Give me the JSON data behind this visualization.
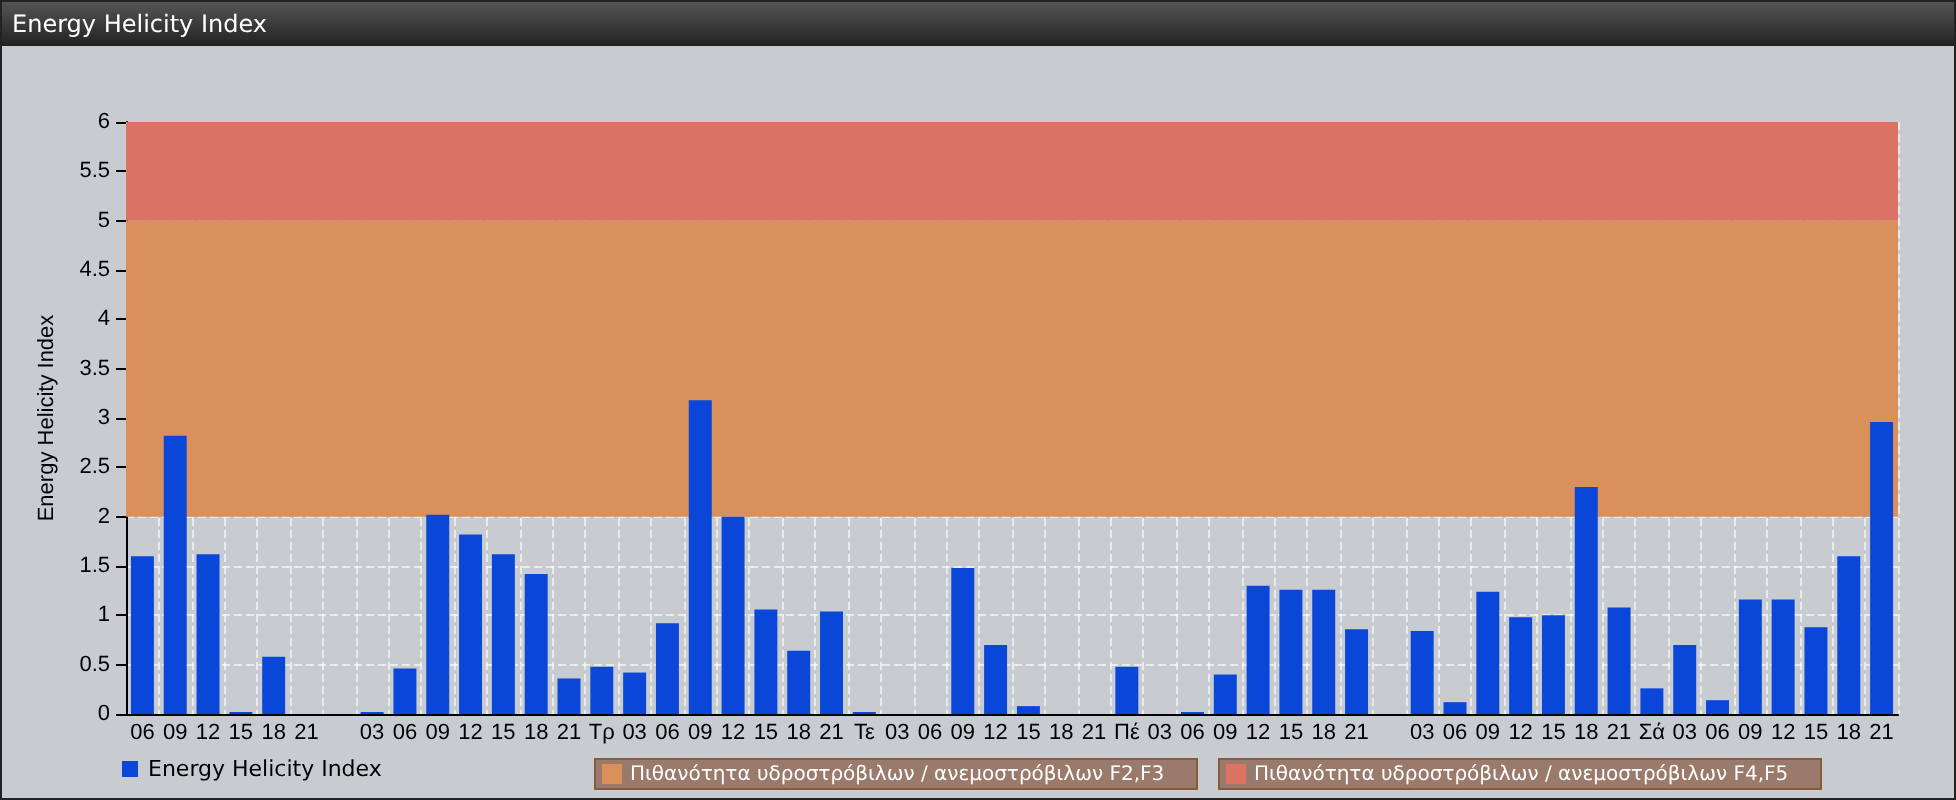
{
  "chart_data": {
    "type": "bar",
    "title": "Energy Helicity Index",
    "ylabel": "Energy Helicity Index",
    "categories": [
      "06",
      "09",
      "12",
      "15",
      "18",
      "21",
      null,
      "03",
      "06",
      "09",
      "12",
      "15",
      "18",
      "21",
      "Τρ",
      "03",
      "06",
      "09",
      "12",
      "15",
      "18",
      "21",
      "Τε",
      "03",
      "06",
      "09",
      "12",
      "15",
      "18",
      "21",
      "Πέ",
      "03",
      "06",
      "09",
      "12",
      "15",
      "18",
      "21",
      null,
      "03",
      "06",
      "09",
      "12",
      "15",
      "18",
      "21",
      "Σά",
      "03",
      "06",
      "09",
      "12",
      "15",
      "18",
      "21"
    ],
    "series": [
      {
        "name": "Energy Helicity Index",
        "color": "#0a47d9",
        "values": [
          1.6,
          2.82,
          1.62,
          0.02,
          0.58,
          0,
          0,
          0.02,
          0.46,
          2.02,
          1.82,
          1.62,
          1.42,
          0.36,
          0.48,
          0.42,
          0.92,
          3.18,
          2.0,
          1.06,
          0.64,
          1.04,
          0.02,
          0,
          0,
          1.48,
          0.7,
          0.08,
          0,
          0,
          0.48,
          0,
          0.02,
          0.4,
          1.3,
          1.26,
          1.26,
          0.86,
          0,
          0.84,
          0.12,
          1.24,
          0.98,
          1.0,
          2.3,
          1.08,
          0.26,
          0.7,
          0.14,
          1.16,
          1.16,
          0.88,
          1.6,
          2.96
        ]
      }
    ],
    "ylim": [
      0,
      6
    ],
    "yticks": [
      0,
      0.5,
      1,
      1.5,
      2,
      2.5,
      3,
      3.5,
      4,
      4.5,
      5,
      5.5,
      6
    ],
    "bands": [
      {
        "axis": "y",
        "from": 2,
        "to": 5,
        "label": "Πιθανότητα υδροστρόβιλων / ανεμοστρόβιλων F2,F3",
        "color": "#d9905a"
      },
      {
        "axis": "y",
        "from": 5,
        "to": 6,
        "label": "Πιθανότητα υδροστρόβιλων / ανεμοστρόβιλων F4,F5",
        "color": "#dc7466"
      }
    ],
    "grid": true,
    "legend": "bottom left"
  }
}
